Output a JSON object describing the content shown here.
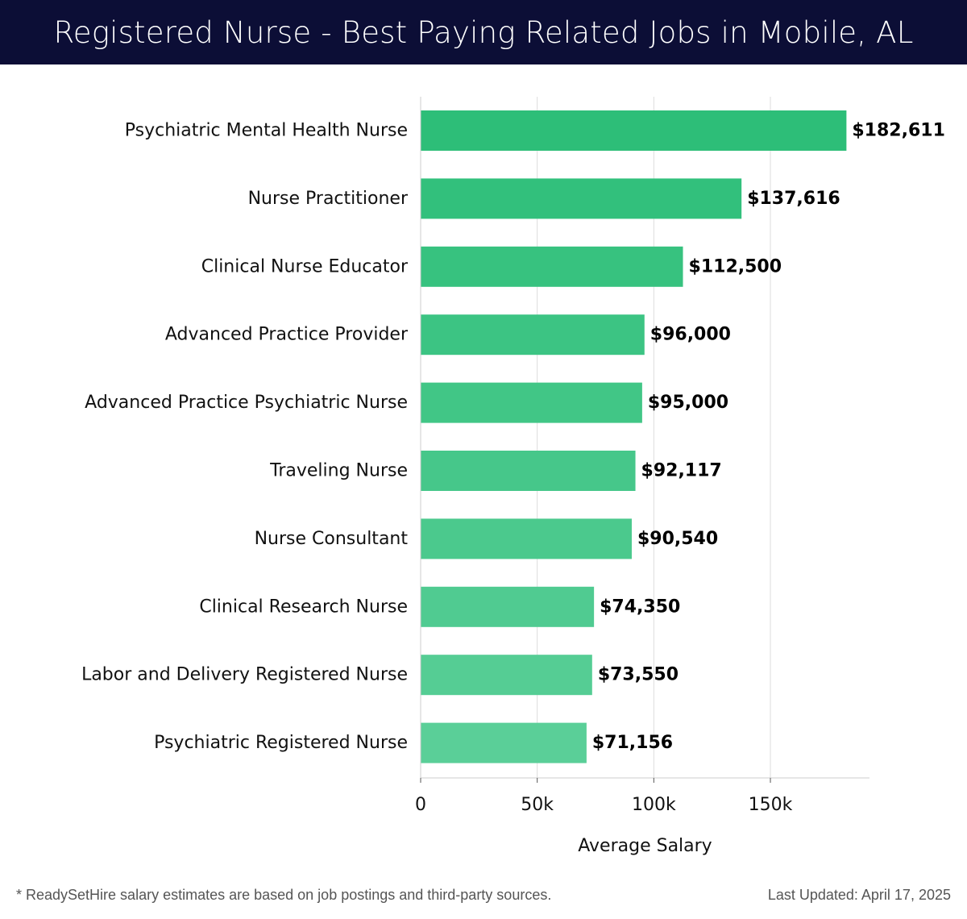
{
  "header": {
    "title": "Registered Nurse - Best Paying Related Jobs in Mobile, AL"
  },
  "footer": {
    "note": "* ReadySetHire salary estimates are based on job postings and third-party sources.",
    "last_updated": "Last Updated: April 17, 2025"
  },
  "colors": {
    "header_bg": "#0c0e36",
    "bar_top": "#2dbe78",
    "bar_bottom": "#5acf98",
    "grid": "#dddddd"
  },
  "chart_data": {
    "type": "bar",
    "orientation": "horizontal",
    "title": "Registered Nurse - Best Paying Related Jobs in Mobile, AL",
    "xlabel": "Average Salary",
    "ylabel": "",
    "categories": [
      "Psychiatric Mental Health Nurse",
      "Nurse Practitioner",
      "Clinical Nurse Educator",
      "Advanced Practice Provider",
      "Advanced Practice Psychiatric Nurse",
      "Traveling Nurse",
      "Nurse Consultant",
      "Clinical Research Nurse",
      "Labor and Delivery Registered Nurse",
      "Psychiatric Registered Nurse"
    ],
    "values": [
      182611,
      137616,
      112500,
      96000,
      95000,
      92117,
      90540,
      74350,
      73550,
      71156
    ],
    "value_labels": [
      "$182,611",
      "$137,616",
      "$112,500",
      "$96,000",
      "$95,000",
      "$92,117",
      "$90,540",
      "$74,350",
      "$73,550",
      "$71,156"
    ],
    "xlim": [
      0,
      192500
    ],
    "xticks": [
      0,
      50000,
      100000,
      150000
    ],
    "xtick_labels": [
      "0",
      "50k",
      "100k",
      "150k"
    ],
    "grid": "vertical"
  }
}
